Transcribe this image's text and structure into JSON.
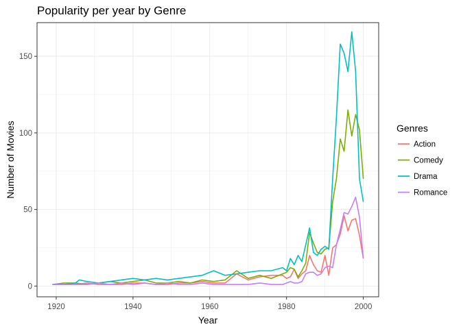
{
  "chart_data": {
    "type": "line",
    "title": "Popularity per year by Genre",
    "xlabel": "Year",
    "ylabel": "Number of Movies",
    "xlim": [
      1915,
      2004
    ],
    "ylim": [
      -7,
      172
    ],
    "xticks": [
      1920,
      1940,
      1960,
      1980,
      2000
    ],
    "yticks": [
      0,
      50,
      100,
      150
    ],
    "grid": true,
    "legend": {
      "title": "Genres",
      "position": "right"
    },
    "series": [
      {
        "name": "Action",
        "color": "#F8766D",
        "x": [
          1919,
          1922,
          1925,
          1928,
          1931,
          1934,
          1937,
          1940,
          1943,
          1946,
          1949,
          1952,
          1955,
          1958,
          1961,
          1964,
          1967,
          1970,
          1973,
          1976,
          1979,
          1980,
          1981,
          1982,
          1983,
          1984,
          1985,
          1986,
          1987,
          1988,
          1989,
          1990,
          1991,
          1992,
          1993,
          1994,
          1995,
          1996,
          1997,
          1998,
          1999,
          2000
        ],
        "values": [
          1,
          1,
          1,
          2,
          1,
          1,
          1,
          2,
          2,
          1,
          1,
          2,
          2,
          3,
          2,
          2,
          8,
          4,
          6,
          7,
          7,
          5,
          6,
          11,
          5,
          8,
          10,
          20,
          14,
          10,
          9,
          20,
          7,
          25,
          27,
          34,
          46,
          36,
          43,
          44,
          33,
          18
        ]
      },
      {
        "name": "Comedy",
        "color": "#7CAE00",
        "x": [
          1919,
          1922,
          1925,
          1928,
          1931,
          1934,
          1937,
          1940,
          1943,
          1946,
          1949,
          1952,
          1955,
          1958,
          1961,
          1964,
          1967,
          1970,
          1973,
          1976,
          1979,
          1980,
          1981,
          1982,
          1983,
          1984,
          1985,
          1986,
          1987,
          1988,
          1989,
          1990,
          1991,
          1992,
          1993,
          1994,
          1995,
          1996,
          1997,
          1998,
          1999,
          2000
        ],
        "values": [
          1,
          2,
          2,
          1,
          2,
          3,
          2,
          3,
          4,
          2,
          2,
          3,
          2,
          4,
          3,
          4,
          10,
          5,
          7,
          5,
          8,
          9,
          12,
          11,
          6,
          10,
          15,
          35,
          28,
          22,
          21,
          24,
          25,
          55,
          70,
          96,
          88,
          115,
          98,
          112,
          102,
          70
        ]
      },
      {
        "name": "Drama",
        "color": "#00BFC4",
        "x": [
          1919,
          1922,
          1925,
          1926,
          1928,
          1931,
          1934,
          1937,
          1940,
          1943,
          1946,
          1949,
          1952,
          1955,
          1958,
          1961,
          1964,
          1967,
          1970,
          1973,
          1976,
          1979,
          1980,
          1981,
          1982,
          1983,
          1984,
          1985,
          1986,
          1987,
          1988,
          1989,
          1990,
          1991,
          1992,
          1993,
          1994,
          1995,
          1996,
          1997,
          1998,
          1999,
          2000
        ],
        "values": [
          1,
          1,
          2,
          4,
          3,
          2,
          3,
          4,
          5,
          4,
          5,
          4,
          5,
          6,
          7,
          10,
          7,
          8,
          9,
          10,
          10,
          12,
          10,
          18,
          14,
          20,
          16,
          27,
          38,
          22,
          20,
          24,
          26,
          24,
          70,
          110,
          158,
          152,
          140,
          166,
          140,
          70,
          55
        ]
      },
      {
        "name": "Romance",
        "color": "#C77CFF",
        "x": [
          1919,
          1922,
          1925,
          1928,
          1931,
          1934,
          1937,
          1940,
          1943,
          1946,
          1949,
          1952,
          1955,
          1958,
          1961,
          1964,
          1967,
          1970,
          1973,
          1976,
          1979,
          1980,
          1981,
          1982,
          1983,
          1984,
          1985,
          1986,
          1987,
          1988,
          1989,
          1990,
          1991,
          1992,
          1993,
          1994,
          1995,
          1996,
          1997,
          1998,
          1999,
          2000
        ],
        "values": [
          1,
          1,
          1,
          1,
          2,
          1,
          2,
          1,
          2,
          1,
          2,
          1,
          1,
          2,
          1,
          1,
          1,
          1,
          2,
          1,
          1,
          2,
          3,
          2,
          2,
          3,
          8,
          9,
          9,
          7,
          8,
          12,
          13,
          12,
          27,
          37,
          48,
          47,
          52,
          58,
          45,
          18
        ]
      }
    ]
  }
}
